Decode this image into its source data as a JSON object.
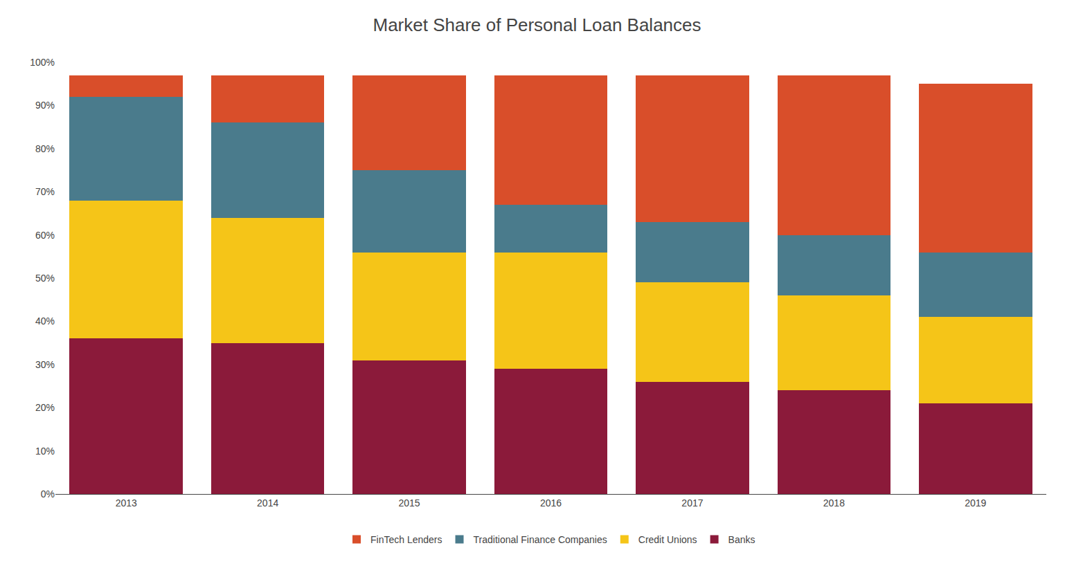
{
  "chart_data": {
    "type": "bar",
    "title": "Market Share of Personal Loan Balances",
    "stacked": true,
    "x": [
      2013,
      2014,
      2015,
      2016,
      2017,
      2018,
      2019
    ],
    "series": [
      {
        "name": "Banks",
        "color": "#8B1A3A",
        "values": [
          36,
          35,
          31,
          29,
          26,
          24,
          21
        ]
      },
      {
        "name": "Credit Unions",
        "color": "#F5C518",
        "values": [
          32,
          29,
          25,
          27,
          23,
          22,
          20
        ]
      },
      {
        "name": "Traditional Finance Companies",
        "color": "#4A7B8C",
        "values": [
          24,
          22,
          19,
          11,
          14,
          14,
          15
        ]
      },
      {
        "name": "FinTech Lenders",
        "color": "#D94E2A",
        "values": [
          5,
          11,
          22,
          30,
          34,
          37,
          39
        ]
      }
    ],
    "xlim": [
      2012.5,
      2019.5
    ],
    "xticks": [
      2013,
      2014,
      2015,
      2016,
      2017,
      2018,
      2019
    ],
    "ylim": [
      0,
      100
    ],
    "yticks": [
      {
        "value": 0,
        "label": "0%"
      },
      {
        "value": 10,
        "label": "10%"
      },
      {
        "value": 20,
        "label": "20%"
      },
      {
        "value": 30,
        "label": "30%"
      },
      {
        "value": 40,
        "label": "40%"
      },
      {
        "value": 50,
        "label": "50%"
      },
      {
        "value": 60,
        "label": "60%"
      },
      {
        "value": 70,
        "label": "70%"
      },
      {
        "value": 80,
        "label": "80%"
      },
      {
        "value": 90,
        "label": "90%"
      },
      {
        "value": 100,
        "label": "100%"
      }
    ],
    "grid": false,
    "legend": "bottom"
  }
}
